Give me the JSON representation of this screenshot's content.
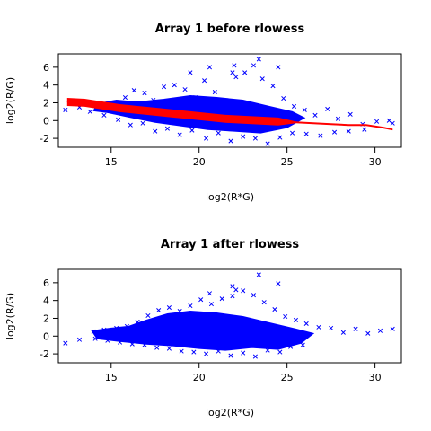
{
  "chart_data": [
    {
      "type": "scatter",
      "title": "Array 1 before rlowess",
      "xlabel": "log2(R*G)",
      "ylabel": "log2(R/G)",
      "xlim": [
        12,
        31.5
      ],
      "ylim": [
        -3,
        7.5
      ],
      "xticks": [
        15,
        20,
        25,
        30
      ],
      "yticks": [
        -2,
        0,
        2,
        4,
        6
      ],
      "grid": false,
      "point_color": "#0000ff",
      "fit_color": "#ff0000",
      "series": [
        {
          "kind": "points",
          "x": [
            12.4,
            13.2,
            14.0,
            14.5,
            15.2,
            15.8,
            16.3,
            16.9,
            17.4,
            18.0,
            18.6,
            19.2,
            19.8,
            20.3,
            20.9,
            21.5,
            22.1,
            22.6,
            23.1,
            23.6,
            24.2,
            24.8,
            25.4,
            26.0,
            26.6,
            27.3,
            27.9,
            28.6,
            29.3,
            30.1,
            30.8,
            31.0,
            20.6,
            22.0,
            23.4,
            21.9,
            24.5,
            19.5
          ],
          "y": [
            1.2,
            1.5,
            1.9,
            1.4,
            1.8,
            2.6,
            3.4,
            3.1,
            2.3,
            3.8,
            4.0,
            3.5,
            2.6,
            4.5,
            3.2,
            2.1,
            4.9,
            5.4,
            6.2,
            4.7,
            3.9,
            2.5,
            1.6,
            1.2,
            0.6,
            1.3,
            0.2,
            0.7,
            -0.4,
            -0.1,
            0.0,
            -0.3,
            6.0,
            6.2,
            6.9,
            5.4,
            6.0,
            5.4
          ]
        },
        {
          "kind": "points",
          "x": [
            13.8,
            14.6,
            15.4,
            16.1,
            16.8,
            17.5,
            18.2,
            18.9,
            19.6,
            20.4,
            21.1,
            21.8,
            22.5,
            23.2,
            23.9,
            24.6,
            25.3,
            26.1,
            26.9,
            27.7,
            28.5,
            29.4
          ],
          "y": [
            1.0,
            0.6,
            0.1,
            -0.5,
            -0.3,
            -1.2,
            -0.9,
            -1.6,
            -1.1,
            -2.0,
            -1.4,
            -2.3,
            -1.8,
            -2.0,
            -2.6,
            -1.9,
            -1.4,
            -1.5,
            -1.7,
            -1.3,
            -1.2,
            -1.0
          ]
        },
        {
          "kind": "line",
          "name": "lowess",
          "x": [
            12.5,
            13.5,
            14.5,
            15.5,
            16.5,
            17.5,
            18.5,
            19.5,
            20.5,
            21.5,
            22.5,
            23.5,
            24.5,
            25.5,
            26.5,
            27.5,
            28.5,
            29.5,
            30.5,
            31.0
          ],
          "y": [
            2.1,
            2.0,
            1.7,
            1.4,
            1.2,
            1.0,
            0.8,
            0.6,
            0.4,
            0.2,
            0.1,
            0.0,
            -0.1,
            -0.2,
            -0.3,
            -0.4,
            -0.5,
            -0.5,
            -0.8,
            -1.0
          ]
        }
      ]
    },
    {
      "type": "scatter",
      "title": "Array 1 after rlowess",
      "xlabel": "log2(R*G)",
      "ylabel": "log2(R/G)",
      "xlim": [
        12,
        31.5
      ],
      "ylim": [
        -3,
        7.5
      ],
      "xticks": [
        15,
        20,
        25,
        30
      ],
      "yticks": [
        -2,
        0,
        2,
        4,
        6
      ],
      "grid": false,
      "point_color": "#0000ff",
      "series": [
        {
          "kind": "points",
          "x": [
            12.4,
            13.2,
            14.0,
            14.6,
            15.3,
            15.9,
            16.5,
            17.1,
            17.7,
            18.3,
            18.9,
            19.5,
            20.1,
            20.7,
            21.3,
            21.9,
            22.5,
            23.1,
            23.7,
            24.3,
            24.9,
            25.5,
            26.1,
            26.8,
            27.5,
            28.2,
            28.9,
            29.6,
            30.3,
            31.0,
            21.9,
            23.4,
            24.5,
            22.1,
            20.6
          ],
          "y": [
            -0.8,
            -0.4,
            0.5,
            0.7,
            0.9,
            1.1,
            1.6,
            2.3,
            2.9,
            3.2,
            2.8,
            3.4,
            4.1,
            3.6,
            4.2,
            4.5,
            5.1,
            4.6,
            3.8,
            3.0,
            2.2,
            1.8,
            1.4,
            1.0,
            0.9,
            0.4,
            0.8,
            0.3,
            0.6,
            0.8,
            5.6,
            6.9,
            5.9,
            5.2,
            4.8
          ]
        },
        {
          "kind": "points",
          "x": [
            14.1,
            14.8,
            15.5,
            16.2,
            16.9,
            17.6,
            18.3,
            19.0,
            19.7,
            20.4,
            21.1,
            21.8,
            22.5,
            23.2,
            23.9,
            24.6,
            25.2,
            25.9
          ],
          "y": [
            -0.3,
            -0.5,
            -0.7,
            -0.9,
            -1.0,
            -1.3,
            -1.4,
            -1.7,
            -1.8,
            -2.0,
            -1.7,
            -2.2,
            -1.9,
            -2.3,
            -1.6,
            -1.8,
            -1.2,
            -1.0
          ]
        }
      ]
    }
  ]
}
